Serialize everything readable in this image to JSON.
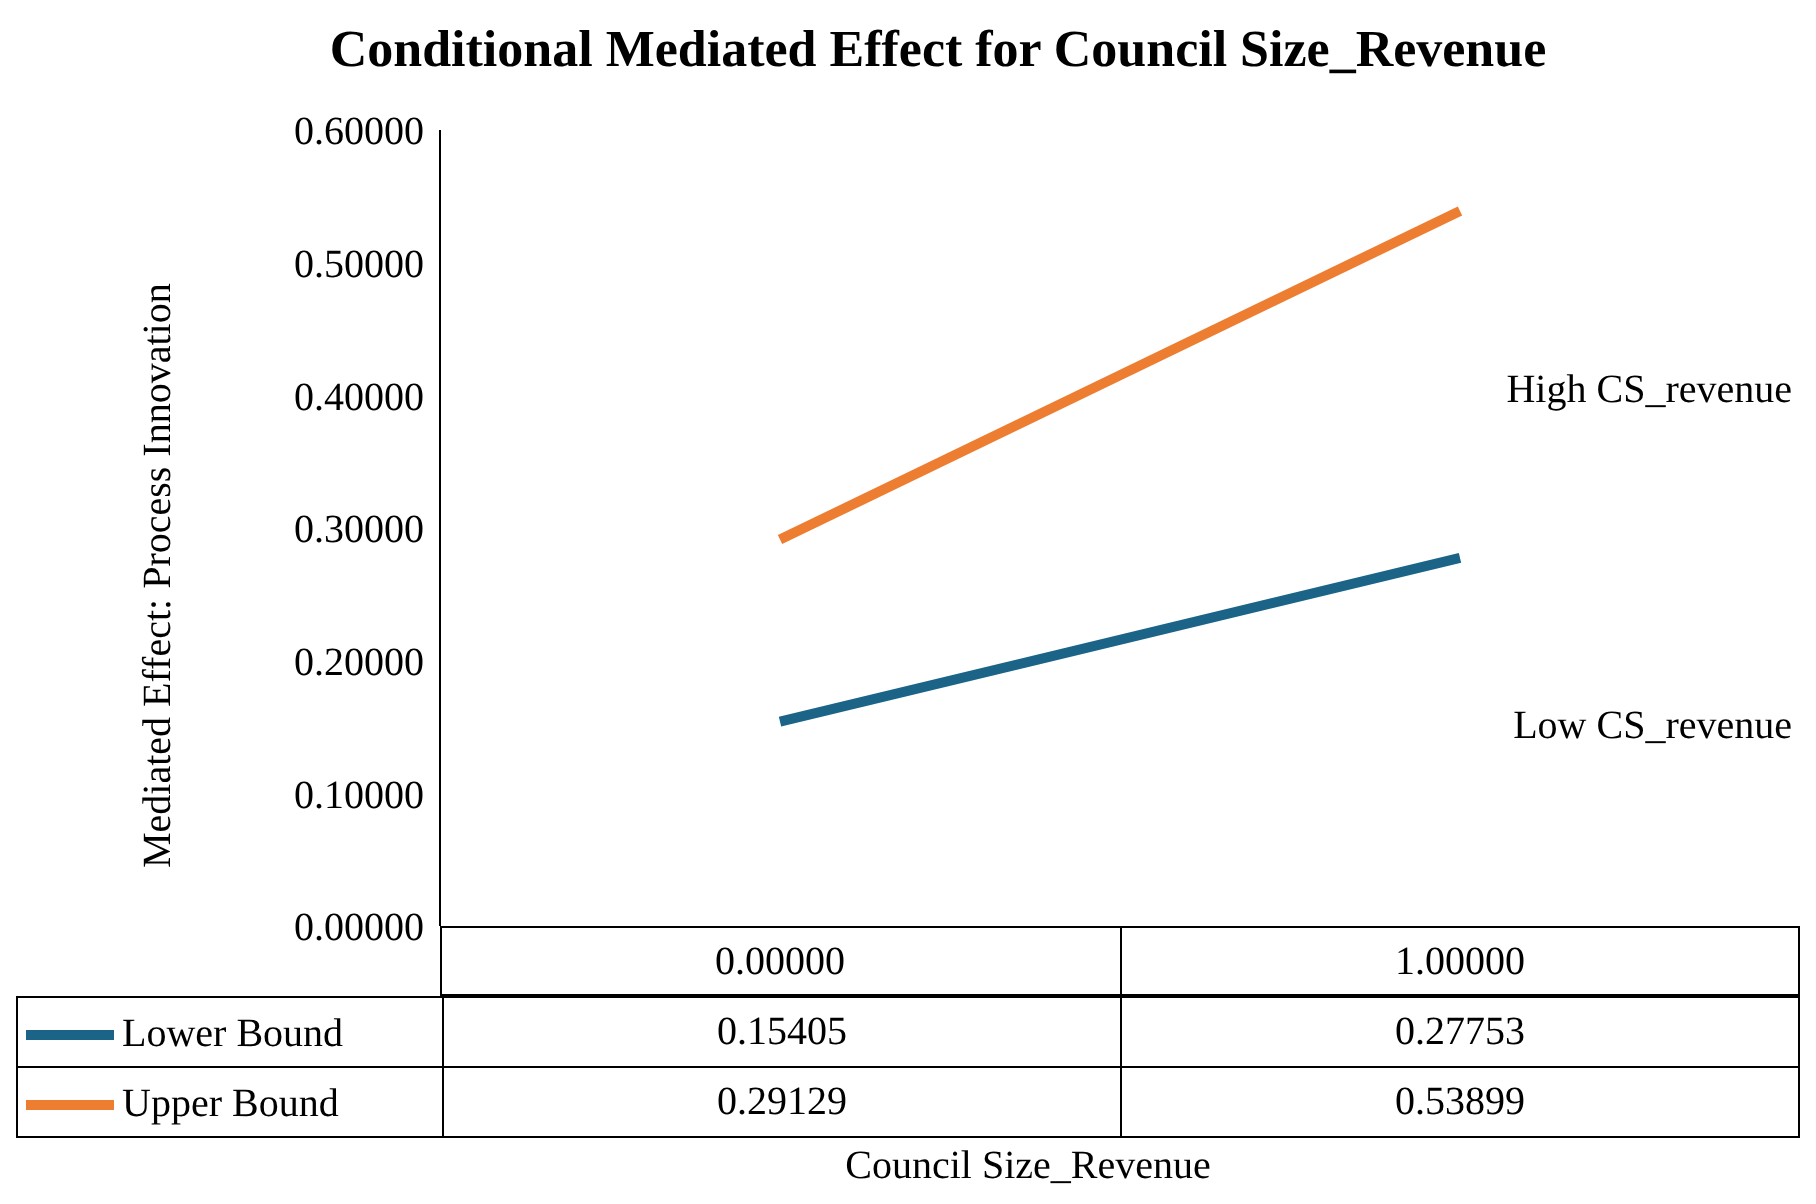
{
  "chart_data": {
    "type": "line",
    "title": "Conditional Mediated Effect for Council Size_Revenue",
    "xlabel": "Council Size_Revenue",
    "ylabel": "Mediated Effect: Process Innovation",
    "categories": [
      "0.00000",
      "1.00000"
    ],
    "series": [
      {
        "name": "Lower Bound",
        "color": "#1b6487",
        "values": [
          0.15405,
          0.27753
        ]
      },
      {
        "name": "Upper Bound",
        "color": "#ed7d31",
        "values": [
          0.29129,
          0.53899
        ]
      }
    ],
    "ylim": [
      0,
      0.6
    ],
    "yticks": [
      {
        "value": 0,
        "label": "0.00000"
      },
      {
        "value": 0.1,
        "label": "0.10000"
      },
      {
        "value": 0.2,
        "label": "0.20000"
      },
      {
        "value": 0.3,
        "label": "0.30000"
      },
      {
        "value": 0.4,
        "label": "0.40000"
      },
      {
        "value": 0.5,
        "label": "0.50000"
      },
      {
        "value": 0.6,
        "label": "0.60000"
      }
    ],
    "annotations": [
      "High CS_revenue",
      "Low CS_revenue"
    ],
    "data_labels": true,
    "legend": "bottom left",
    "grid": false,
    "marker": "none",
    "line_style": "solid"
  }
}
